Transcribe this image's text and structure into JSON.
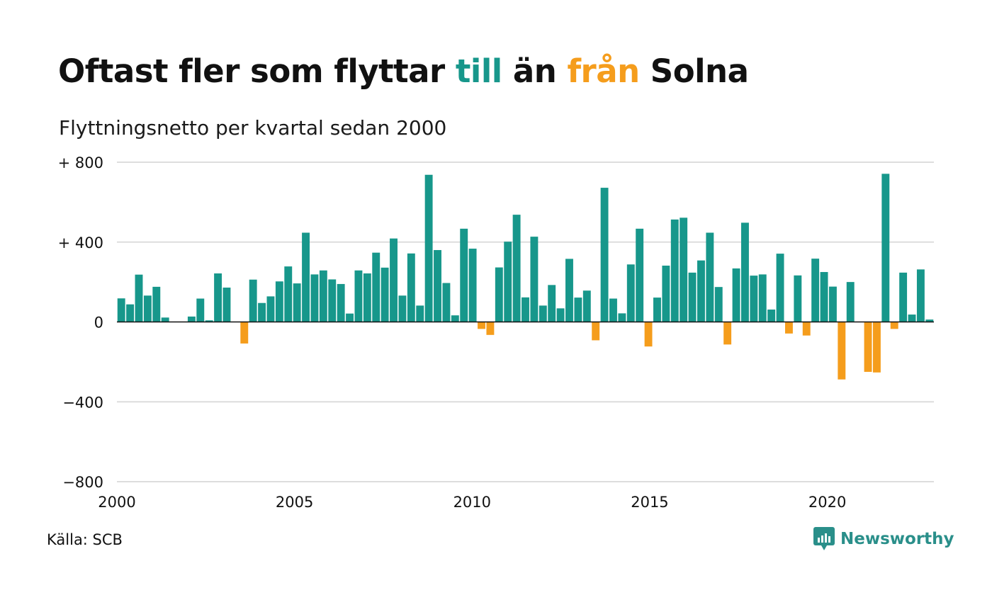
{
  "colors": {
    "positive": "#17978b",
    "negative": "#f59d1c",
    "gridline": "#dddddd",
    "text": "#111111",
    "logo": "#2a8f8a"
  },
  "title": {
    "part1": "Oftast fler som flyttar ",
    "till": "till",
    "part2": " än ",
    "fran": "från",
    "part3": " Solna"
  },
  "subtitle": "Flyttningsnetto per kvartal sedan 2000",
  "source": "Källa: SCB",
  "logo": {
    "text": "Newsworthy",
    "icon": "newsworthy-logo-icon"
  },
  "chart_data": {
    "type": "bar",
    "title": "Oftast fler som flyttar till än från Solna",
    "subtitle": "Flyttningsnetto per kvartal sedan 2000",
    "x_start": 2000,
    "x_end": 2023,
    "ylim": [
      -800,
      800
    ],
    "y_ticks": [
      {
        "value": 800,
        "label": "+ 800"
      },
      {
        "value": 400,
        "label": "+ 400"
      },
      {
        "value": 0,
        "label": "0"
      },
      {
        "value": -400,
        "label": "−400"
      },
      {
        "value": -800,
        "label": "−800"
      }
    ],
    "x_ticks": [
      {
        "value": 2000,
        "label": "2000"
      },
      {
        "value": 2005,
        "label": "2005"
      },
      {
        "value": 2010,
        "label": "2010"
      },
      {
        "value": 2015,
        "label": "2015"
      },
      {
        "value": 2020,
        "label": "2020"
      }
    ],
    "grid": true,
    "legend": "none",
    "quarters": [
      "2000 Q1",
      "2000 Q2",
      "2000 Q3",
      "2000 Q4",
      "2001 Q1",
      "2001 Q2",
      "2001 Q3",
      "2001 Q4",
      "2002 Q1",
      "2002 Q2",
      "2002 Q3",
      "2002 Q4",
      "2003 Q1",
      "2003 Q2",
      "2003 Q3",
      "2003 Q4",
      "2004 Q1",
      "2004 Q2",
      "2004 Q3",
      "2004 Q4",
      "2005 Q1",
      "2005 Q2",
      "2005 Q3",
      "2005 Q4",
      "2006 Q1",
      "2006 Q2",
      "2006 Q3",
      "2006 Q4",
      "2007 Q1",
      "2007 Q2",
      "2007 Q3",
      "2007 Q4",
      "2008 Q1",
      "2008 Q2",
      "2008 Q3",
      "2008 Q4",
      "2009 Q1",
      "2009 Q2",
      "2009 Q3",
      "2009 Q4",
      "2010 Q1",
      "2010 Q2",
      "2010 Q3",
      "2010 Q4",
      "2011 Q1",
      "2011 Q2",
      "2011 Q3",
      "2011 Q4",
      "2012 Q1",
      "2012 Q2",
      "2012 Q3",
      "2012 Q4",
      "2013 Q1",
      "2013 Q2",
      "2013 Q3",
      "2013 Q4",
      "2014 Q1",
      "2014 Q2",
      "2014 Q3",
      "2014 Q4",
      "2015 Q1",
      "2015 Q2",
      "2015 Q3",
      "2015 Q4",
      "2016 Q1",
      "2016 Q2",
      "2016 Q3",
      "2016 Q4",
      "2017 Q1",
      "2017 Q2",
      "2017 Q3",
      "2017 Q4",
      "2018 Q1",
      "2018 Q2",
      "2018 Q3",
      "2018 Q4",
      "2019 Q1",
      "2019 Q2",
      "2019 Q3",
      "2019 Q4",
      "2020 Q1",
      "2020 Q2",
      "2020 Q3",
      "2020 Q4",
      "2021 Q1",
      "2021 Q2",
      "2021 Q3",
      "2021 Q4",
      "2022 Q1",
      "2022 Q2",
      "2022 Q3",
      "2022 Q4",
      "2023 Q1"
    ],
    "values": [
      118,
      88,
      237,
      132,
      176,
      22,
      0,
      0,
      27,
      117,
      8,
      243,
      172,
      0,
      -108,
      212,
      95,
      128,
      203,
      278,
      193,
      447,
      238,
      258,
      213,
      190,
      42,
      258,
      243,
      347,
      272,
      418,
      132,
      343,
      82,
      737,
      360,
      195,
      33,
      467,
      367,
      -35,
      -65,
      273,
      402,
      537,
      123,
      427,
      82,
      185,
      68,
      316,
      122,
      157,
      -92,
      672,
      117,
      43,
      288,
      467,
      -123,
      122,
      282,
      513,
      522,
      247,
      308,
      447,
      175,
      -113,
      268,
      497,
      232,
      238,
      62,
      342,
      -58,
      233,
      -68,
      317,
      250,
      177,
      -288,
      200,
      0,
      -250,
      -253,
      742,
      -35,
      247,
      37,
      263,
      12
    ]
  }
}
